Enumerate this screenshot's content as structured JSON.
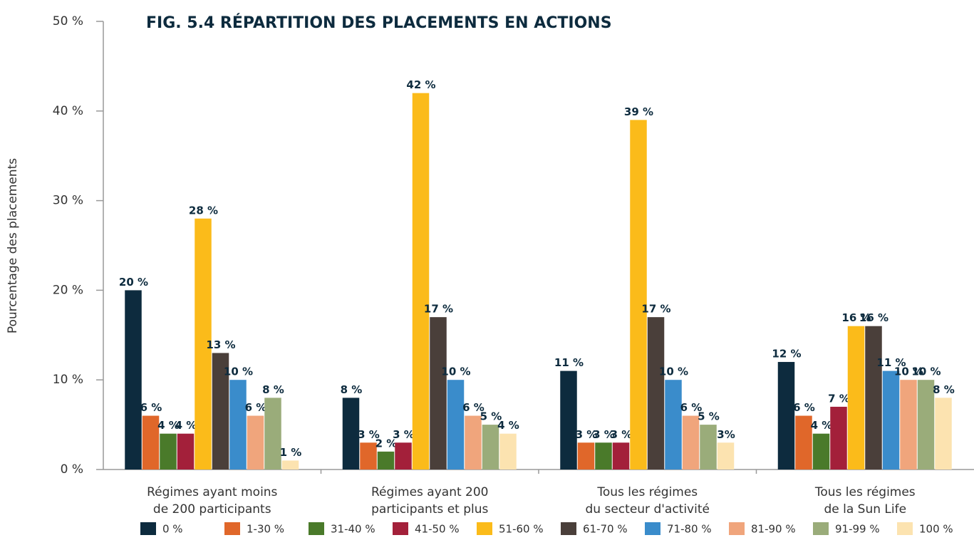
{
  "chart_data": {
    "type": "bar",
    "title": "FIG. 5.4 RÉPARTITION DES PLACEMENTS EN ACTIONS",
    "y_label": "Pourcentage des placements",
    "categories": [
      [
        "Régimes ayant moins",
        "de 200 participants"
      ],
      [
        "Régimes ayant 200",
        "participants et plus"
      ],
      [
        "Tous les régimes",
        "du secteur d'activité"
      ],
      [
        "Tous les régimes",
        "de la Sun Life"
      ]
    ],
    "series": [
      {
        "name": "0 %",
        "color": "#0d2b3e",
        "values": [
          20,
          8,
          11,
          12
        ],
        "value_labels": [
          "20 %",
          "8 %",
          "11 %",
          "12 %"
        ]
      },
      {
        "name": "1-30 %",
        "color": "#e0672a",
        "values": [
          6,
          3,
          3,
          6
        ],
        "value_labels": [
          "6 %",
          "3 %",
          "3 %",
          "6 %"
        ]
      },
      {
        "name": "31-40 %",
        "color": "#4a7a2a",
        "values": [
          4,
          2,
          3,
          4
        ],
        "value_labels": [
          "4 %",
          "2 %",
          "3 %",
          "4 %"
        ]
      },
      {
        "name": "41-50 %",
        "color": "#a3203a",
        "values": [
          4,
          3,
          3,
          7
        ],
        "value_labels": [
          "4 %",
          "3 %",
          "3 %",
          "7 %"
        ]
      },
      {
        "name": "51-60 %",
        "color": "#fbbb1a",
        "values": [
          28,
          42,
          39,
          16
        ],
        "value_labels": [
          "28 %",
          "42 %",
          "39 %",
          "16 %"
        ]
      },
      {
        "name": "61-70 %",
        "color": "#4a3f3a",
        "values": [
          13,
          17,
          17,
          16
        ],
        "value_labels": [
          "13 %",
          "17 %",
          "17 %",
          "16 %"
        ]
      },
      {
        "name": "71-80 %",
        "color": "#3a8ccb",
        "values": [
          10,
          10,
          10,
          11
        ],
        "value_labels": [
          "10 %",
          "10 %",
          "10 %",
          "11 %"
        ]
      },
      {
        "name": "81-90 %",
        "color": "#f0a57c",
        "values": [
          6,
          6,
          6,
          10
        ],
        "value_labels": [
          "6 %",
          "6 %",
          "6 %",
          "10 %"
        ]
      },
      {
        "name": "91-99 %",
        "color": "#9aac7a",
        "values": [
          8,
          5,
          5,
          10
        ],
        "value_labels": [
          "8 %",
          "5 %",
          "5 %",
          "10 %"
        ]
      },
      {
        "name": "100 %",
        "color": "#fce3b0",
        "values": [
          1,
          4,
          3,
          8
        ],
        "value_labels": [
          "1 %",
          "4 %",
          "3%",
          "8 %"
        ]
      }
    ],
    "ylim": [
      0,
      50
    ],
    "yticks": [
      {
        "value": 0,
        "label": "0 %"
      },
      {
        "value": 10,
        "label": "10 %"
      },
      {
        "value": 20,
        "label": "20 %"
      },
      {
        "value": 30,
        "label": "30 %"
      },
      {
        "value": 40,
        "label": "40 %"
      },
      {
        "value": 50,
        "label": "50 %"
      }
    ]
  }
}
